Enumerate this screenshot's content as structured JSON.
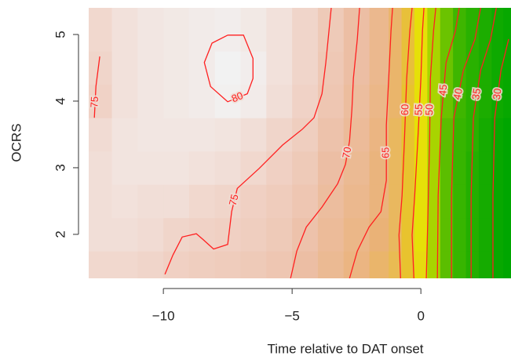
{
  "chart_data": {
    "type": "heatmap",
    "xlabel": "Time relative to DAT onset",
    "ylabel": "OCRS",
    "x": [
      -12.5,
      -11.5,
      -10.5,
      -9.5,
      -8.5,
      -7.5,
      -6.5,
      -5.5,
      -4.5,
      -3.5,
      -2.5,
      -1.5,
      -1,
      -0.5,
      0,
      0.5,
      1,
      1.5,
      2,
      2.5,
      3,
      3.4
    ],
    "y": [
      1.5,
      2,
      2.5,
      3,
      3.5,
      4,
      4.5,
      5
    ],
    "z": [
      [
        76,
        76,
        75.5,
        74.5,
        74,
        73.5,
        73,
        72,
        70,
        67,
        64,
        61,
        59,
        56,
        52,
        46,
        41,
        37,
        34,
        32,
        30,
        29
      ],
      [
        77,
        77,
        76.5,
        75.5,
        75,
        74.5,
        74,
        73,
        71,
        68,
        65,
        62,
        60,
        56,
        51,
        46,
        41,
        37,
        34,
        32,
        30,
        29
      ],
      [
        77,
        77.5,
        77,
        77,
        76,
        75.5,
        74.5,
        73.5,
        72,
        69,
        66,
        63,
        60,
        56,
        51,
        46,
        41,
        37,
        34,
        32,
        30,
        29
      ],
      [
        77,
        78,
        78,
        78,
        77.5,
        77,
        76,
        74.5,
        73,
        70,
        67,
        63,
        60,
        56,
        51,
        46,
        41,
        37,
        34,
        32,
        30,
        29
      ],
      [
        76.5,
        78,
        78.5,
        78.5,
        78.5,
        78,
        77,
        75.5,
        74,
        71,
        68,
        64,
        60,
        56,
        51,
        46,
        41,
        37,
        35,
        32,
        30,
        29
      ],
      [
        75,
        77.5,
        78.5,
        79,
        79.5,
        80.5,
        79.5,
        77,
        75,
        72,
        69,
        65,
        61,
        56,
        51,
        46,
        42,
        38,
        35,
        33,
        31,
        30
      ],
      [
        75.5,
        77.5,
        78.5,
        79,
        79.5,
        81,
        80,
        77.5,
        75.5,
        72.5,
        70,
        66,
        61,
        57,
        51,
        46,
        42,
        38,
        35,
        33,
        31,
        30
      ],
      [
        76,
        77.5,
        78.5,
        79,
        79.5,
        80,
        79,
        77.5,
        75.5,
        73,
        70,
        66,
        61,
        57,
        51,
        46,
        42,
        38,
        35,
        33,
        31,
        30
      ]
    ],
    "colorscale": [
      [
        29,
        "#00a600"
      ],
      [
        40,
        "#4cba00"
      ],
      [
        50,
        "#e6e600"
      ],
      [
        56,
        "#e8c32e"
      ],
      [
        62,
        "#eab277"
      ],
      [
        70,
        "#ecbea4"
      ],
      [
        75,
        "#f0d2c6"
      ],
      [
        78,
        "#f2e4df"
      ],
      [
        81,
        "#f2f2f2"
      ]
    ],
    "contour_color": "#ff2020",
    "contours": [
      {
        "level": 80,
        "x": [
          -7.5,
          -6.89,
          -6.52,
          -6.52,
          -6.74,
          -7.5,
          -8.17,
          -8.41,
          -8.11,
          -7.5
        ],
        "y": [
          4.99,
          4.99,
          4.64,
          4.34,
          4.11,
          3.99,
          4.22,
          4.58,
          4.87,
          4.99
        ]
      },
      {
        "level": 75,
        "x": [
          -12.47,
          -12.62,
          -12.68
        ],
        "y": [
          4.67,
          4.22,
          3.75
        ]
      },
      {
        "level": 75,
        "x": [
          -9.94,
          -9.63,
          -9.27,
          -8.72,
          -8.48,
          -8.05,
          -7.5,
          -7.35,
          -7.13,
          -6.28,
          -5.37,
          -4.6,
          -4.15,
          -3.84,
          -3.69,
          -3.48
        ],
        "y": [
          1.4,
          1.69,
          1.96,
          2.01,
          1.93,
          1.78,
          1.85,
          2.34,
          2.69,
          2.99,
          3.34,
          3.58,
          3.75,
          4.11,
          4.58,
          5.4
        ]
      },
      {
        "level": 70,
        "x": [
          -5.06,
          -4.82,
          -4.45,
          -3.84,
          -3.23,
          -2.93,
          -2.77,
          -2.68,
          -2.62,
          -2.47,
          -2.38
        ],
        "y": [
          1.34,
          1.75,
          2.11,
          2.41,
          2.76,
          3.05,
          3.4,
          3.87,
          4.34,
          4.93,
          5.4
        ]
      },
      {
        "level": 65,
        "x": [
          -2.77,
          -2.47,
          -2.01,
          -1.55,
          -1.34,
          -1.34,
          -1.25,
          -1.16,
          -1.1
        ],
        "y": [
          1.34,
          1.75,
          2.11,
          2.34,
          2.81,
          3.64,
          4.34,
          5.05,
          5.4
        ]
      },
      {
        "level": 60,
        "x": [
          -0.79,
          -0.85,
          -0.73,
          -0.64,
          -0.55,
          -0.43,
          -0.34
        ],
        "y": [
          1.34,
          1.99,
          2.58,
          3.4,
          4.34,
          5.05,
          5.4
        ]
      },
      {
        "level": 55,
        "x": [
          -0.27,
          -0.34,
          -0.24,
          -0.12,
          0,
          0.06,
          0.12
        ],
        "y": [
          1.34,
          1.99,
          2.58,
          3.4,
          4.34,
          5.05,
          5.4
        ]
      },
      {
        "level": 50,
        "x": [
          0.21,
          0.27,
          0.34,
          0.37,
          0.49,
          0.58
        ],
        "y": [
          1.34,
          2.22,
          3.4,
          4.34,
          5.05,
          5.4
        ]
      },
      {
        "level": 45,
        "x": [
          0.64,
          0.67,
          0.79,
          0.98,
          1.34,
          1.49
        ],
        "y": [
          1.34,
          2.58,
          3.75,
          4.58,
          5.05,
          5.4
        ]
      },
      {
        "level": 40,
        "x": [
          1.19,
          1.19,
          1.28,
          1.65,
          2.1,
          2.32
        ],
        "y": [
          1.34,
          2.58,
          3.75,
          4.46,
          4.93,
          5.4
        ]
      },
      {
        "level": 35,
        "x": [
          1.95,
          1.95,
          2.04,
          2.32,
          2.71,
          2.93
        ],
        "y": [
          1.34,
          2.58,
          3.75,
          4.46,
          4.93,
          5.4
        ]
      },
      {
        "level": 30,
        "x": [
          2.8,
          2.8,
          2.87,
          3.11,
          3.41
        ],
        "y": [
          1.34,
          2.58,
          3.75,
          4.46,
          4.93
        ]
      }
    ],
    "xlim": [
      -12.9,
      3.5
    ],
    "ylim": [
      1.34,
      5.4
    ],
    "xticks": [
      {
        "value": -10,
        "label": "−10"
      },
      {
        "value": -5,
        "label": "−5"
      },
      0
    ],
    "yticks": [
      2,
      3,
      4,
      5
    ]
  }
}
